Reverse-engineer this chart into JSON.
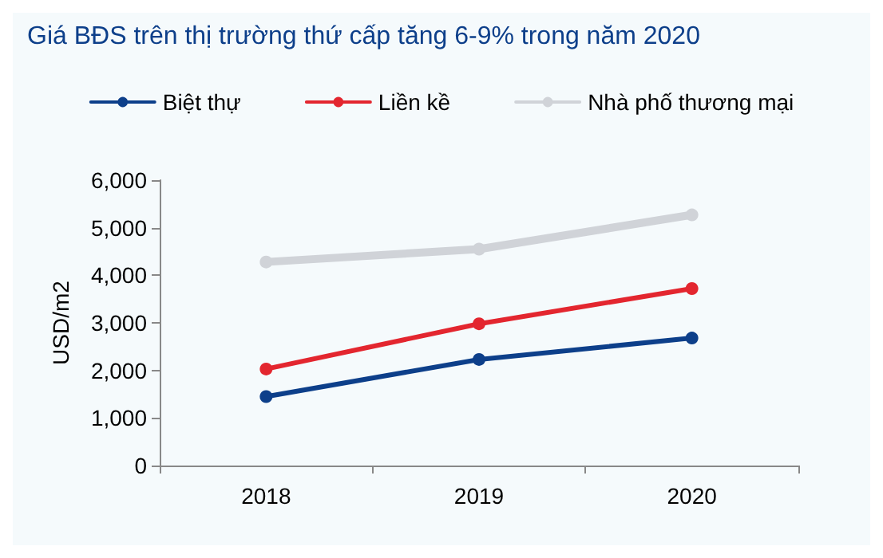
{
  "chart_data": {
    "type": "line",
    "title": "Giá BĐS trên thị trường thứ cấp tăng 6-9% trong năm 2020",
    "ylabel": "USD/m2",
    "categories": [
      "2018",
      "2019",
      "2020"
    ],
    "series": [
      {
        "name": "Biệt thự",
        "color": "#0d3f8a",
        "values": [
          1450,
          2230,
          2680
        ]
      },
      {
        "name": "Liền kề",
        "color": "#e3262f",
        "values": [
          2030,
          2980,
          3720
        ]
      },
      {
        "name": "Nhà phố thương mại",
        "color": "#d0d3d8",
        "values": [
          4280,
          4550,
          5270
        ]
      }
    ],
    "ylim": [
      0,
      6000
    ],
    "yticks": [
      {
        "value": 0,
        "label": "0"
      },
      {
        "value": 1000,
        "label": "1,000"
      },
      {
        "value": 2000,
        "label": "2,000"
      },
      {
        "value": 3000,
        "label": "3,000"
      },
      {
        "value": 4000,
        "label": "4,000"
      },
      {
        "value": 5000,
        "label": "5,000"
      },
      {
        "value": 6000,
        "label": "6,000"
      }
    ],
    "grid": false,
    "legend": "top",
    "marker": "circle",
    "line_style": "solid"
  }
}
